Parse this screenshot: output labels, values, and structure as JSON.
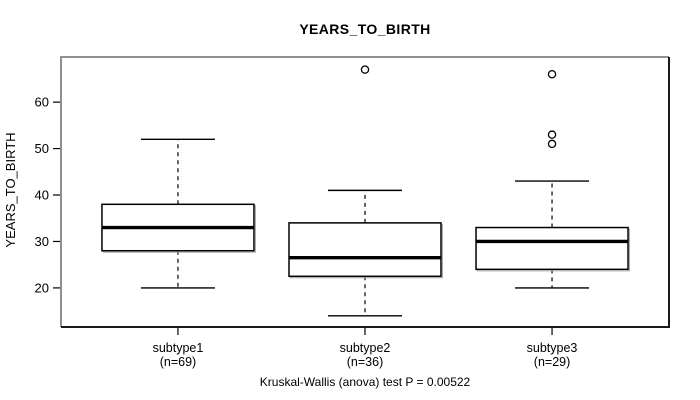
{
  "colors": {
    "frame_light": "#8f8f8f",
    "frame_dark": "#1a1a1a",
    "line": "#000000",
    "box_fill": "#ffffff",
    "box_shadow": "#aaaaaa",
    "background": "#ffffff"
  },
  "chart_data": {
    "type": "boxplot",
    "title": "YEARS_TO_BIRTH",
    "ylabel": "YEARS_TO_BIRTH",
    "annotation": "Kruskal-Wallis (anova) test P = 0.00522",
    "yticks": [
      20,
      30,
      40,
      50,
      60
    ],
    "ylim": [
      11.8,
      69.5
    ],
    "grid": false,
    "legend": false,
    "groups": [
      {
        "label": "subtype1",
        "sublabel": "(n=69)",
        "n": 69,
        "whisker_low": 20,
        "q1": 28,
        "median": 33,
        "q3": 38,
        "whisker_high": 52,
        "outliers": []
      },
      {
        "label": "subtype2",
        "sublabel": "(n=36)",
        "n": 36,
        "whisker_low": 14,
        "q1": 22.5,
        "median": 26.5,
        "q3": 34,
        "whisker_high": 41,
        "outliers": [
          67
        ]
      },
      {
        "label": "subtype3",
        "sublabel": "(n=29)",
        "n": 29,
        "whisker_low": 20,
        "q1": 24,
        "median": 30,
        "q3": 33,
        "whisker_high": 43,
        "outliers": [
          51,
          53,
          66
        ]
      }
    ]
  }
}
